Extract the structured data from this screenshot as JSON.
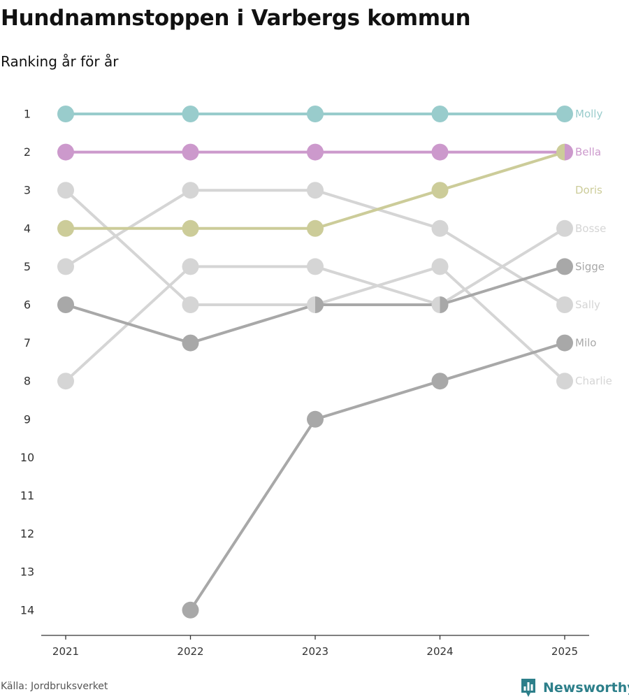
{
  "header": {
    "title": "Hundnamnstoppen i Varbergs kommun",
    "subtitle": "Ranking år för år"
  },
  "footer": {
    "source": "Källa: Jordbruksverket",
    "brand": "Newsworthy",
    "brand_icon": "newsworthy-logo-icon",
    "brand_color": "#2d7f8a"
  },
  "chart_data": {
    "type": "line",
    "subtype": "bump",
    "title": "Hundnamnstoppen i Varbergs kommun",
    "subtitle": "Ranking år för år",
    "x": [
      "2021",
      "2022",
      "2023",
      "2024",
      "2025"
    ],
    "y_ticks": [
      "1",
      "2",
      "3",
      "4",
      "5",
      "6",
      "7",
      "8",
      "9",
      "10",
      "11",
      "12",
      "13",
      "14"
    ],
    "ylim": [
      1,
      14
    ],
    "y_inverted": true,
    "xlabel": "",
    "ylabel": "",
    "grid": false,
    "series": [
      {
        "name": "Charlie",
        "label": "Charlie",
        "color": "#d5d5d5",
        "values": [
          3,
          6,
          6,
          5,
          8
        ],
        "label_value": 8
      },
      {
        "name": "Bosse",
        "label": "Bosse",
        "color": "#d5d5d5",
        "values": [
          8,
          5,
          5,
          6,
          4
        ],
        "label_value": 4
      },
      {
        "name": "Sally",
        "label": "Sally",
        "color": "#d5d5d5",
        "values": [
          5,
          3,
          3,
          4,
          6
        ],
        "label_value": 6
      },
      {
        "name": "Milo",
        "label": "Milo",
        "color": "#a8a8a8",
        "values": [
          null,
          14,
          9,
          8,
          7
        ],
        "label_value": 7
      },
      {
        "name": "Sigge",
        "label": "Sigge",
        "color": "#a8a8a8",
        "values": [
          6,
          7,
          6,
          6,
          5
        ],
        "label_value": 5
      },
      {
        "name": "Doris",
        "label": "Doris",
        "color": "#cccc99",
        "values": [
          4,
          4,
          4,
          3,
          2
        ],
        "label_value": 3
      },
      {
        "name": "Bella",
        "label": "Bella",
        "color": "#cc99cc",
        "values": [
          2,
          2,
          2,
          2,
          2
        ],
        "label_value": 2
      },
      {
        "name": "Molly",
        "label": "Molly",
        "color": "#99cccc",
        "values": [
          1,
          1,
          1,
          1,
          1
        ],
        "label_value": 1
      }
    ]
  }
}
